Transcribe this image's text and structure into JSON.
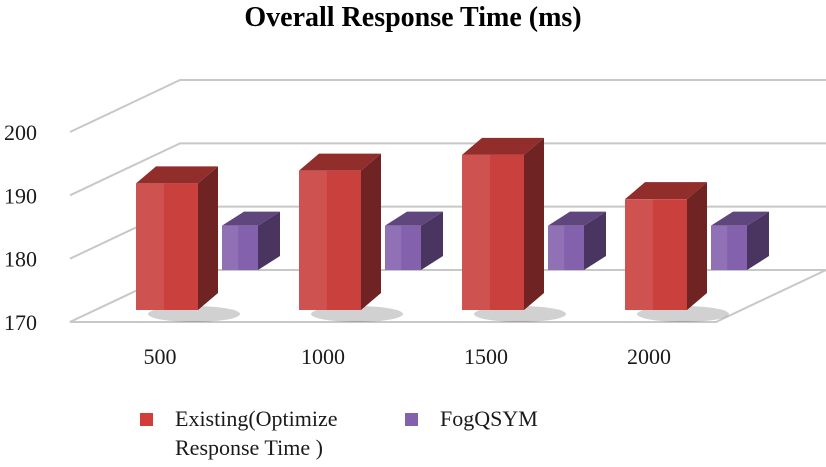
{
  "chart_data": {
    "type": "bar",
    "title": "Overall Response Time (ms)",
    "categories": [
      "500",
      "1000",
      "1500",
      "2000"
    ],
    "series": [
      {
        "name": "Existing(Optimize Response Time )",
        "values": [
          190,
          192,
          194.5,
          187.5
        ],
        "color": "#c9403d"
      },
      {
        "name": "FogQSYM",
        "values": [
          177,
          177,
          177,
          177
        ],
        "color": "#8461ad"
      }
    ],
    "y_ticks": [
      "170",
      "180",
      "190",
      "200"
    ],
    "ylim": [
      170,
      200
    ],
    "grid": true,
    "legend_position": "bottom",
    "xlabel": "",
    "ylabel": ""
  }
}
